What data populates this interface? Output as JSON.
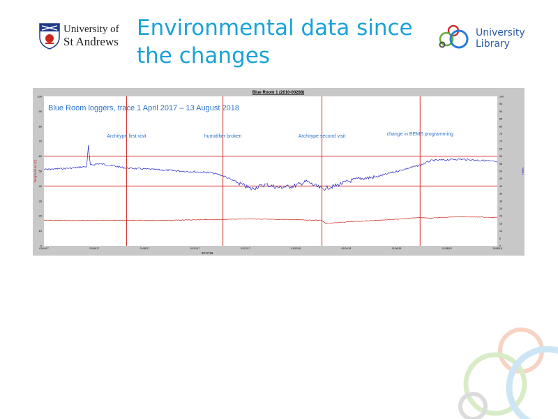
{
  "header": {
    "institution_line1": "University of",
    "institution_line2": "St Andrews",
    "title_line1": "Environmental data since",
    "title_line2": "the changes",
    "library_line1": "University",
    "library_line2": "Library"
  },
  "chart_data": {
    "type": "line",
    "title": "Blue Room 1 (2010-00288)",
    "subtitle": "Blue Room loggers, trace 1 April 2017 – 13 August 2018",
    "ylabel_left": "Temperature (C)",
    "ylabel_right": "%RH",
    "ylim_left": [
      0,
      100
    ],
    "ylim_right": [
      0,
      100
    ],
    "xlim": [
      "2017-04-01",
      "2018-08-13"
    ],
    "left_ticks": [
      0,
      10,
      20,
      30,
      40,
      50,
      60,
      70,
      80,
      90,
      100
    ],
    "right_ticks": [
      0,
      5,
      10,
      15,
      20,
      25,
      30,
      35,
      40,
      45,
      50,
      55,
      60,
      65,
      70,
      75,
      80,
      85,
      90,
      95,
      100
    ],
    "x_tick_labels": [
      "01/04/17",
      "01/06/17",
      "01/08/17",
      "01/10/17",
      "01/12/17",
      "01/02/18",
      "01/04/18",
      "01/06/18",
      "01/08/18",
      "13/08/18"
    ],
    "x_axis_label": "2017/18",
    "reference_lines": [
      {
        "axis": "y",
        "value": 60,
        "color": "#d0302c"
      },
      {
        "axis": "y",
        "value": 40,
        "color": "#d0302c"
      }
    ],
    "annotations": [
      {
        "date": "2017-07-01",
        "label": "Architype first visit"
      },
      {
        "date": "2017-10-15",
        "label": "humidifier broken"
      },
      {
        "date": "2018-02-01",
        "label": "Architype second visit"
      },
      {
        "date": "2018-05-20",
        "label": "change in BEMS programming"
      }
    ],
    "series": [
      {
        "axis": "right",
        "color": "#2424c8",
        "x": [
          "2017-04-01",
          "2017-05-01",
          "2017-05-18",
          "2017-05-20",
          "2017-05-22",
          "2017-06-01",
          "2017-07-01",
          "2017-08-01",
          "2017-09-01",
          "2017-10-01",
          "2017-10-15",
          "2017-11-01",
          "2017-11-15",
          "2017-12-01",
          "2017-12-15",
          "2018-01-01",
          "2018-01-15",
          "2018-02-01",
          "2018-02-15",
          "2018-03-01",
          "2018-03-15",
          "2018-04-01",
          "2018-05-01",
          "2018-05-20",
          "2018-06-01",
          "2018-07-01",
          "2018-08-01",
          "2018-08-13"
        ],
        "values": [
          51,
          52,
          53,
          67,
          54,
          55,
          52,
          51,
          50,
          49,
          47,
          42,
          38,
          41,
          39,
          40,
          43,
          38,
          40,
          43,
          45,
          46,
          51,
          54,
          57,
          58,
          57,
          56
        ]
      },
      {
        "axis": "left",
        "color": "#c8281e",
        "x": [
          "2017-04-01",
          "2017-06-01",
          "2017-08-01",
          "2017-10-01",
          "2017-11-15",
          "2018-01-01",
          "2018-02-01",
          "2018-02-05",
          "2018-03-01",
          "2018-04-01",
          "2018-05-01",
          "2018-05-20",
          "2018-06-01",
          "2018-07-01",
          "2018-08-13"
        ],
        "values": [
          17,
          17,
          17,
          17.5,
          18,
          17.5,
          17,
          15,
          16,
          17,
          18,
          19,
          18.5,
          19.5,
          19
        ]
      }
    ]
  }
}
